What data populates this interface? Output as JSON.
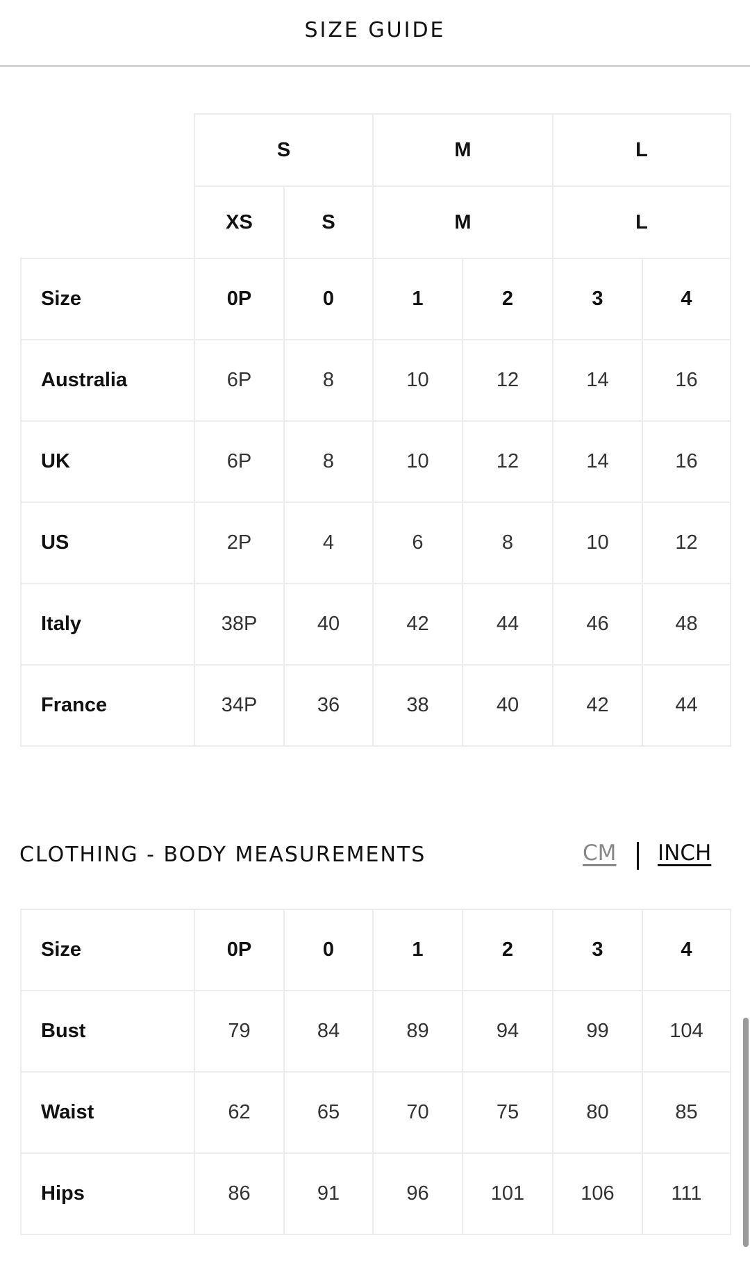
{
  "header": {
    "title": "SIZE GUIDE"
  },
  "size_table": {
    "group_row": [
      "S",
      "M",
      "L"
    ],
    "letter_row": [
      "XS",
      "S",
      "M",
      "L"
    ],
    "rows": [
      {
        "label": "Size",
        "values": [
          "0P",
          "0",
          "1",
          "2",
          "3",
          "4"
        ]
      },
      {
        "label": "Australia",
        "values": [
          "6P",
          "8",
          "10",
          "12",
          "14",
          "16"
        ]
      },
      {
        "label": "UK",
        "values": [
          "6P",
          "8",
          "10",
          "12",
          "14",
          "16"
        ]
      },
      {
        "label": "US",
        "values": [
          "2P",
          "4",
          "6",
          "8",
          "10",
          "12"
        ]
      },
      {
        "label": "Italy",
        "values": [
          "38P",
          "40",
          "42",
          "44",
          "46",
          "48"
        ]
      },
      {
        "label": "France",
        "values": [
          "34P",
          "36",
          "38",
          "40",
          "42",
          "44"
        ]
      }
    ]
  },
  "measurements": {
    "heading": "CLOTHING - BODY MEASUREMENTS",
    "units": {
      "cm": "CM",
      "separator": "|",
      "inch": "INCH",
      "active": "INCH"
    },
    "rows": [
      {
        "label": "Size",
        "values": [
          "0P",
          "0",
          "1",
          "2",
          "3",
          "4"
        ]
      },
      {
        "label": "Bust",
        "values": [
          "79",
          "84",
          "89",
          "94",
          "99",
          "104"
        ]
      },
      {
        "label": "Waist",
        "values": [
          "62",
          "65",
          "70",
          "75",
          "80",
          "85"
        ]
      },
      {
        "label": "Hips",
        "values": [
          "86",
          "91",
          "96",
          "101",
          "106",
          "111"
        ]
      }
    ]
  }
}
